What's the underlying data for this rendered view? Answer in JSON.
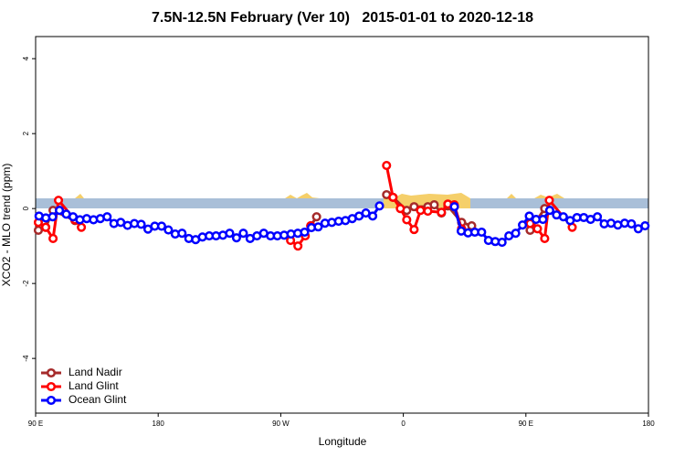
{
  "chart_data": {
    "type": "line",
    "title": "7.5N-12.5N February (Ver 10)   2015-01-01 to 2020-12-18",
    "x_label": "Longitude",
    "y_label": "XCO2 - MLO trend (ppm)",
    "xlim": [
      90,
      540
    ],
    "xticks": [
      {
        "value": 90,
        "label": "90 E"
      },
      180,
      {
        "value": 270,
        "label": "90 W"
      },
      {
        "value": 360,
        "label": "0"
      },
      {
        "value": 450,
        "label": "90 E"
      },
      {
        "value": 540,
        "label": "180"
      }
    ],
    "ylim": [
      -5.46,
      4.59
    ],
    "yticks": [
      -4,
      -2,
      0,
      2,
      4
    ],
    "legend": "bottom-left",
    "series": [
      {
        "name": "Land Nadir",
        "color": "#a52a2a",
        "x": [
          92,
          97.4,
          102.8,
          118.9,
          null,
          292,
          296.3,
          null,
          347.7,
          352.4,
          362.5,
          367.9,
          378,
          382.7,
          388,
          392.7,
          402.8,
          410.2,
          null,
          453.1,
          463.8
        ],
        "values": [
          -0.58,
          -0.5,
          -0.05,
          -0.32,
          null,
          -0.46,
          -0.22,
          null,
          0.37,
          0.3,
          -0.05,
          0.05,
          0.05,
          0.1,
          -0.12,
          0.07,
          -0.37,
          -0.46,
          null,
          -0.58,
          0.0
        ]
      },
      {
        "name": "Land Glint",
        "color": "#ff0000",
        "x": [
          92,
          97.4,
          102.8,
          106.8,
          118.9,
          123.6,
          null,
          277.2,
          282.6,
          288,
          292,
          null,
          347.7,
          352.4,
          357.8,
          362.5,
          367.9,
          372.6,
          378,
          388,
          392.7,
          397.4,
          402.8,
          null,
          453.1,
          458.5,
          463.8,
          467.2,
          484
        ],
        "values": [
          -0.37,
          -0.5,
          -0.8,
          0.22,
          -0.3,
          -0.5,
          null,
          -0.85,
          -1.0,
          -0.73,
          -0.46,
          null,
          1.15,
          0.3,
          0.0,
          -0.3,
          -0.56,
          -0.05,
          -0.07,
          -0.1,
          0.12,
          0.1,
          -0.54,
          null,
          -0.4,
          -0.54,
          -0.8,
          0.22,
          -0.5
        ]
      },
      {
        "name": "Ocean Glint",
        "color": "#0000ff",
        "x": [
          92.5,
          97.5,
          102.5,
          107.5,
          112.5,
          117.5,
          122.5,
          127.5,
          132.5,
          137.5,
          142.5,
          147.5,
          152.5,
          157.5,
          162.5,
          167.5,
          172.5,
          177.5,
          182.5,
          187.5,
          192.5,
          197.5,
          202.5,
          207.5,
          212.5,
          217.5,
          222.5,
          227.5,
          232.5,
          237.5,
          242.5,
          247.5,
          252.5,
          257.5,
          262.5,
          267.5,
          272.5,
          277.5,
          282.5,
          287.5,
          292.5,
          297.5,
          302.5,
          307.5,
          312.5,
          317.5,
          322.5,
          327.5,
          332.5,
          337.5,
          342.5,
          null,
          397.5,
          402.5,
          407.5,
          412.5,
          417.5,
          422.5,
          427.5,
          432.5,
          437.5,
          442.5,
          447.5,
          452.5,
          457.5,
          462.5,
          467.5,
          472.5,
          477.5,
          482.5,
          487.5,
          492.5,
          497.5,
          502.5,
          507.5,
          512.5,
          517.5,
          522.5,
          527.5,
          532.5,
          537.5
        ],
        "values": [
          -0.2,
          -0.25,
          -0.22,
          -0.05,
          -0.15,
          -0.22,
          -0.3,
          -0.27,
          -0.3,
          -0.27,
          -0.22,
          -0.4,
          -0.37,
          -0.45,
          -0.4,
          -0.42,
          -0.55,
          -0.47,
          -0.47,
          -0.57,
          -0.68,
          -0.66,
          -0.8,
          -0.83,
          -0.76,
          -0.73,
          -0.73,
          -0.71,
          -0.66,
          -0.78,
          -0.66,
          -0.8,
          -0.73,
          -0.66,
          -0.73,
          -0.73,
          -0.71,
          -0.68,
          -0.66,
          -0.63,
          -0.51,
          -0.49,
          -0.39,
          -0.37,
          -0.34,
          -0.32,
          -0.27,
          -0.2,
          -0.12,
          -0.2,
          0.07,
          null,
          0.05,
          -0.6,
          -0.65,
          -0.63,
          -0.63,
          -0.85,
          -0.88,
          -0.9,
          -0.73,
          -0.66,
          -0.44,
          -0.2,
          -0.29,
          -0.29,
          -0.05,
          -0.17,
          -0.22,
          -0.32,
          -0.24,
          -0.24,
          -0.29,
          -0.22,
          -0.41,
          -0.39,
          -0.44,
          -0.39,
          -0.41,
          -0.54,
          -0.46
        ]
      }
    ]
  }
}
